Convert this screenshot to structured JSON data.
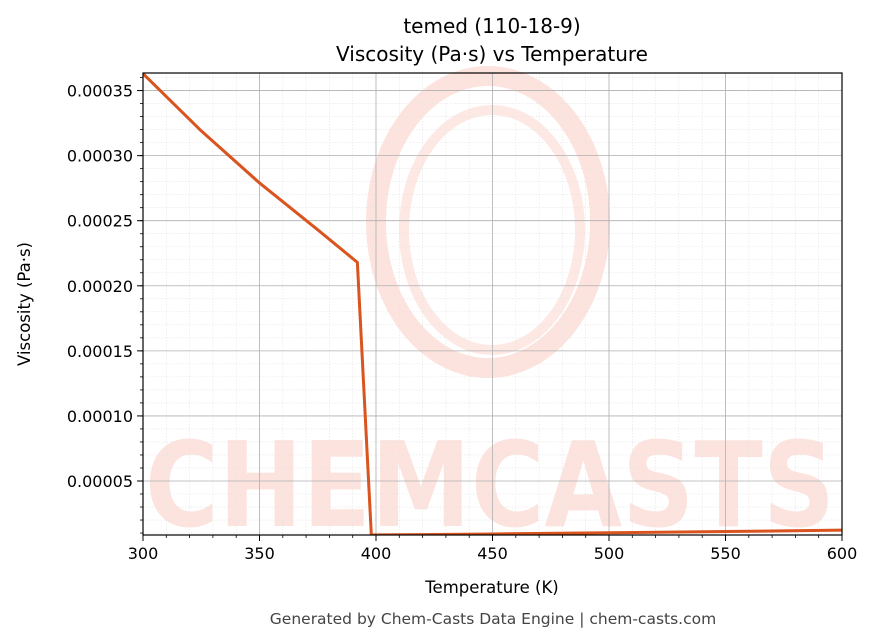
{
  "chart_data": {
    "type": "line",
    "title": "temed (110-18-9)",
    "subtitle": "Viscosity (Pa·s) vs Temperature",
    "xlabel": "Temperature (K)",
    "ylabel": "Viscosity (Pa·s)",
    "xlim": [
      300,
      600
    ],
    "ylim": [
      8.5e-06,
      0.0003635
    ],
    "x_ticks": [
      "300",
      "350",
      "400",
      "450",
      "500",
      "550",
      "600"
    ],
    "y_ticks": [
      "0.00005",
      "0.00010",
      "0.00015",
      "0.00020",
      "0.00025",
      "0.00030",
      "0.00035"
    ],
    "grid": true,
    "series": [
      {
        "color": "#d9541e",
        "x": [
          300,
          325,
          350,
          375,
          392,
          398,
          420,
          450,
          500,
          550,
          600
        ],
        "y": [
          0.000363,
          0.000319,
          0.000279,
          0.000243,
          0.000218,
          8.5e-06,
          8.8e-06,
          9.3e-06,
          1.02e-05,
          1.12e-05,
          1.22e-05
        ]
      }
    ]
  },
  "watermark": {
    "text": "CHEMCASTS",
    "color": "#fde3de"
  },
  "footer": {
    "text": "Generated by Chem-Casts Data Engine | chem-casts.com"
  }
}
